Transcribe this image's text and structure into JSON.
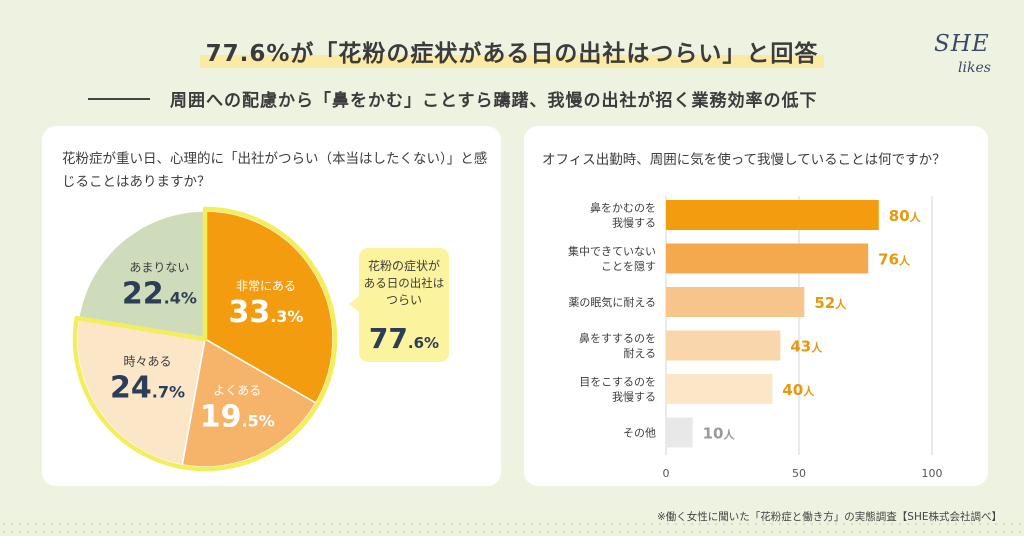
{
  "header": {
    "title": "77.6%が「花粉の症状がある日の出社はつらい」と回答",
    "subtitle": "周囲への配慮から「鼻をかむ」ことすら躊躇、我慢の出社が招く業務効率の低下",
    "logo_main": "SHE",
    "logo_sub": "likes"
  },
  "left_panel": {
    "question": "花粉症が重い日、心理的に「出社がつらい（本当はしたくない）」と感じることはありますか？"
  },
  "right_panel": {
    "question": "オフィス出勤時、周囲に気を使って我慢していることは何ですか？"
  },
  "colors": {
    "bg": "#eef3e1",
    "pie": [
      "#f49c0f",
      "#f6b46a",
      "#fbe6c8",
      "#cfdcbb"
    ],
    "highlight": "#f2ee5e",
    "callout": "#fbf39e",
    "bars": [
      "#f49c0f",
      "#f5a94f",
      "#f7c48c",
      "#f9d6ab",
      "#fbe6c8",
      "#e8e8e8"
    ],
    "values": [
      "#e8970e",
      "#e8970e",
      "#e8970e",
      "#e8970e",
      "#e8970e",
      "#9a9a9a"
    ]
  },
  "chart_data": [
    {
      "type": "pie",
      "title": "",
      "slices": [
        {
          "label": "非常にある",
          "value": 33.3,
          "num": "33",
          "dec": ".3%"
        },
        {
          "label": "よくある",
          "value": 19.5,
          "num": "19",
          "dec": ".5%"
        },
        {
          "label": "時々ある",
          "value": 24.7,
          "num": "24",
          "dec": ".7%"
        },
        {
          "label": "あまりない",
          "value": 22.4,
          "num": "22",
          "dec": ".4%"
        }
      ],
      "callout": {
        "text": [
          "花粉の症状が",
          "ある日の出社は",
          "つらい"
        ],
        "num": "77",
        "dec": ".6%"
      }
    },
    {
      "type": "bar",
      "orientation": "horizontal",
      "categories": [
        [
          "鼻をかむのを",
          "我慢する"
        ],
        [
          "集中できていない",
          "ことを隠す"
        ],
        [
          "薬の眠気に耐える"
        ],
        [
          "鼻をすするのを",
          "耐える"
        ],
        [
          "目をこするのを",
          "我慢する"
        ],
        [
          "その他"
        ]
      ],
      "values": [
        80,
        76,
        52,
        43,
        40,
        10
      ],
      "unit": "人",
      "xlim": [
        0,
        100
      ],
      "xticks": [
        0,
        50,
        100
      ]
    }
  ],
  "footer": {
    "source": "※働く女性に聞いた「花粉症と働き方」の実態調査【SHE株式会社調べ】"
  }
}
